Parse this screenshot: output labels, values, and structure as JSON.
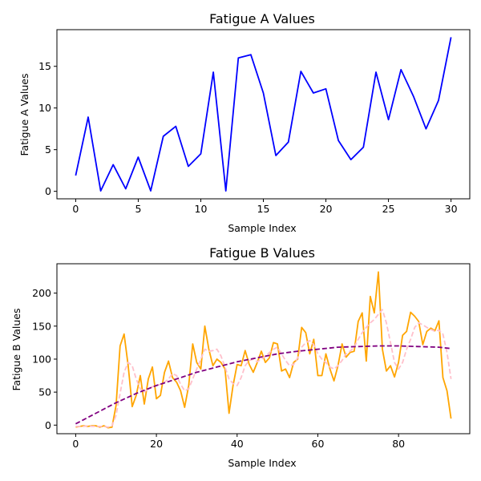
{
  "chart_data": [
    {
      "type": "line",
      "title": "Fatigue A Values",
      "xlabel": "Sample Index",
      "ylabel": "Fatigue A Values",
      "xlim": [
        -1.5,
        31.5
      ],
      "ylim": [
        -0.9,
        19.4
      ],
      "xticks": [
        0,
        5,
        10,
        15,
        20,
        25,
        30
      ],
      "yticks": [
        0,
        5,
        10,
        15
      ],
      "grid": false,
      "series": [
        {
          "color": "#0000ff",
          "style": "solid",
          "x": [
            0,
            1,
            2,
            3,
            4,
            5,
            6,
            7,
            8,
            9,
            10,
            11,
            12,
            13,
            14,
            15,
            16,
            17,
            18,
            19,
            20,
            21,
            22,
            23,
            24,
            25,
            26,
            27,
            28,
            29,
            30
          ],
          "y": [
            1.9,
            8.9,
            0.05,
            3.2,
            0.3,
            4.1,
            0.05,
            6.6,
            7.8,
            3.0,
            4.5,
            14.3,
            0.05,
            16.0,
            16.4,
            11.8,
            4.3,
            5.9,
            14.4,
            11.8,
            12.3,
            6.1,
            3.8,
            5.3,
            14.3,
            8.6,
            14.6,
            11.4,
            7.5,
            10.9,
            18.5
          ]
        }
      ]
    },
    {
      "type": "line",
      "title": "Fatigue B Values",
      "xlabel": "Sample Index",
      "ylabel": "Fatigue B Values",
      "xlim": [
        -4.65,
        97.65
      ],
      "ylim": [
        -13.0,
        244.5
      ],
      "xticks": [
        0,
        20,
        40,
        60,
        80
      ],
      "yticks": [
        0,
        50,
        100,
        150,
        200
      ],
      "grid": false,
      "series": [
        {
          "color": "#ffa500",
          "style": "solid",
          "x": [
            0,
            1,
            2,
            3,
            4,
            5,
            6,
            7,
            8,
            9,
            10,
            11,
            12,
            13,
            14,
            15,
            16,
            17,
            18,
            19,
            20,
            21,
            22,
            23,
            24,
            25,
            26,
            27,
            28,
            29,
            30,
            31,
            32,
            33,
            34,
            35,
            36,
            37,
            38,
            39,
            40,
            41,
            42,
            43,
            44,
            45,
            46,
            47,
            48,
            49,
            50,
            51,
            52,
            53,
            54,
            55,
            56,
            57,
            58,
            59,
            60,
            61,
            62,
            63,
            64,
            65,
            66,
            67,
            68,
            69,
            70,
            71,
            72,
            73,
            74,
            75,
            76,
            77,
            78,
            79,
            80,
            81,
            82,
            83,
            84,
            85,
            86,
            87,
            88,
            89,
            90,
            91,
            92,
            93
          ],
          "y": [
            -3,
            -2,
            -1,
            -2,
            -1,
            -1,
            -3,
            -1,
            -4,
            -3,
            30,
            120,
            138,
            90,
            28,
            45,
            75,
            32,
            70,
            88,
            40,
            45,
            80,
            97,
            72,
            65,
            52,
            27,
            60,
            123,
            95,
            85,
            150,
            115,
            90,
            100,
            95,
            85,
            18,
            60,
            92,
            90,
            113,
            92,
            80,
            95,
            112,
            95,
            102,
            125,
            123,
            82,
            85,
            72,
            95,
            100,
            148,
            140,
            108,
            130,
            75,
            75,
            108,
            85,
            67,
            90,
            123,
            103,
            110,
            112,
            157,
            170,
            97,
            195,
            170,
            232,
            115,
            82,
            90,
            73,
            95,
            136,
            142,
            171,
            165,
            157,
            122,
            142,
            147,
            143,
            158,
            72,
            52,
            10
          ]
        },
        {
          "color": "#ffc0cb",
          "style": "dashed",
          "x": [
            0,
            1,
            2,
            3,
            4,
            5,
            6,
            7,
            8,
            9,
            10,
            11,
            12,
            13,
            14,
            15,
            16,
            17,
            18,
            19,
            20,
            21,
            22,
            23,
            24,
            25,
            26,
            27,
            28,
            29,
            30,
            31,
            32,
            33,
            34,
            35,
            36,
            37,
            38,
            39,
            40,
            41,
            42,
            43,
            44,
            45,
            46,
            47,
            48,
            49,
            50,
            51,
            52,
            53,
            54,
            55,
            56,
            57,
            58,
            59,
            60,
            61,
            62,
            63,
            64,
            65,
            66,
            67,
            68,
            69,
            70,
            71,
            72,
            73,
            74,
            75,
            76,
            77,
            78,
            79,
            80,
            81,
            82,
            83,
            84,
            85,
            86,
            87,
            88,
            89,
            90,
            91,
            92,
            93
          ],
          "y": [
            -2,
            -2,
            -2,
            -1,
            -2,
            -2,
            -2,
            -2,
            -3,
            -1,
            15,
            48,
            80,
            95,
            90,
            70,
            55,
            50,
            55,
            58,
            60,
            62,
            65,
            70,
            78,
            75,
            62,
            52,
            55,
            70,
            85,
            100,
            115,
            112,
            113,
            115,
            105,
            88,
            70,
            63,
            60,
            72,
            90,
            98,
            100,
            96,
            100,
            104,
            110,
            115,
            118,
            108,
            98,
            90,
            92,
            102,
            118,
            125,
            128,
            122,
            108,
            100,
            95,
            88,
            85,
            90,
            98,
            108,
            112,
            118,
            130,
            140,
            148,
            155,
            160,
            168,
            175,
            155,
            125,
            95,
            85,
            95,
            115,
            130,
            148,
            155,
            152,
            148,
            145,
            142,
            144,
            138,
            110,
            70
          ]
        },
        {
          "color": "#800080",
          "style": "dashed",
          "x": [
            0,
            5,
            10,
            15,
            20,
            25,
            30,
            35,
            40,
            45,
            50,
            55,
            60,
            65,
            70,
            75,
            80,
            85,
            90,
            93
          ],
          "y": [
            2,
            18,
            34,
            48,
            60,
            70,
            80,
            88,
            96,
            102,
            108,
            112,
            115,
            118,
            119,
            120,
            120,
            119,
            118,
            116
          ]
        }
      ]
    }
  ]
}
